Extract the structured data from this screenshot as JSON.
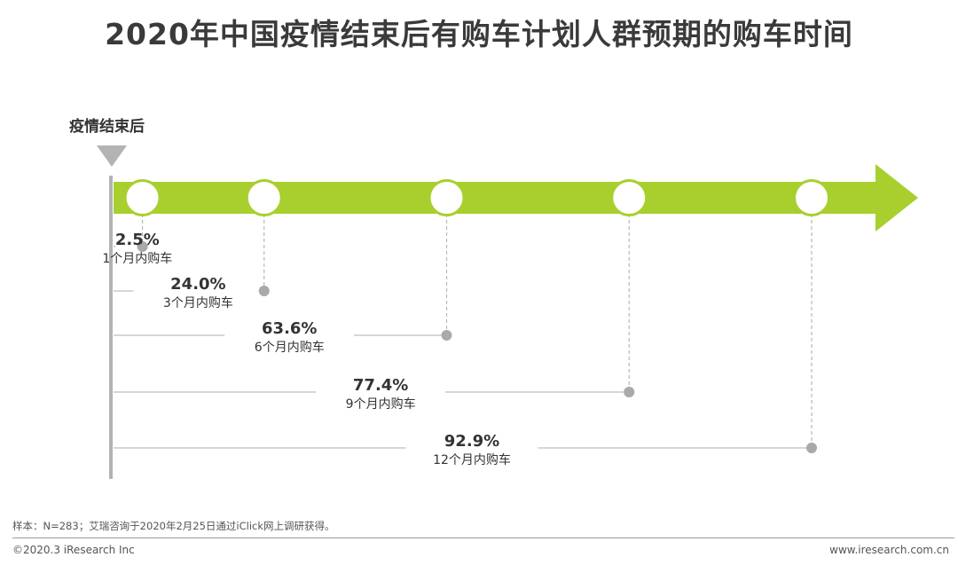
{
  "title": "2020年中国疫情结束后有购车计划人群预期的购车时间",
  "start_label": "疫情结束后",
  "chart_data": {
    "type": "timeline-cumulative",
    "title": "2020年中国疫情结束后有购车计划人群预期的购车时间",
    "unit": "%",
    "items": [
      {
        "period": "1个月内购车",
        "months": 1,
        "value": 2.5,
        "value_label": "2.5%"
      },
      {
        "period": "3个月内购车",
        "months": 3,
        "value": 24.0,
        "value_label": "24.0%"
      },
      {
        "period": "6个月内购车",
        "months": 6,
        "value": 63.6,
        "value_label": "63.6%"
      },
      {
        "period": "9个月内购车",
        "months": 9,
        "value": 77.4,
        "value_label": "77.4%"
      },
      {
        "period": "12个月内购车",
        "months": 12,
        "value": 92.9,
        "value_label": "92.9%"
      }
    ]
  },
  "colors": {
    "arrow": "#a8cf2e",
    "axis": "#b3b3b3",
    "marker": "#a9a9a9",
    "text": "#333333"
  },
  "footer": {
    "note": "样本：N=283；艾瑞咨询于2020年2月25日通过iClick网上调研获得。",
    "copyright": "©2020.3 iResearch Inc",
    "website": "www.iresearch.com.cn"
  }
}
